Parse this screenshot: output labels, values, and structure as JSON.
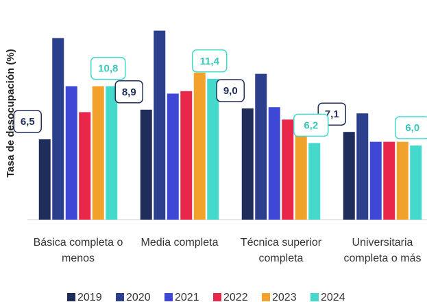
{
  "chart_data": {
    "type": "bar",
    "y_label": "Tasa de desocupación (%)",
    "categories": [
      "Básica completa o menos",
      "Media completa",
      "Técnica superior completa",
      "Universitaria completa o más"
    ],
    "ylim": [
      0,
      16.5
    ],
    "series": [
      {
        "name": "2019",
        "color": "#1f2d5a",
        "values": [
          6.5,
          8.9,
          9.0,
          7.1
        ],
        "value_labels": [
          "6,5",
          "8,9",
          "9,0",
          "7,1"
        ]
      },
      {
        "name": "2020",
        "color": "#2b3f8c",
        "values": [
          14.7,
          15.3,
          11.8,
          8.6
        ]
      },
      {
        "name": "2021",
        "color": "#3f48d6",
        "values": [
          10.8,
          10.2,
          9.1,
          6.3
        ]
      },
      {
        "name": "2022",
        "color": "#e8274b",
        "values": [
          8.7,
          10.4,
          8.1,
          6.3
        ]
      },
      {
        "name": "2023",
        "color": "#f2a12a",
        "values": [
          10.8,
          11.9,
          7.8,
          6.3
        ]
      },
      {
        "name": "2024",
        "color": "#45d9cc",
        "values": [
          10.8,
          11.4,
          6.2,
          6.0
        ],
        "value_labels": [
          "10,8",
          "11,4",
          "6,2",
          "6,0"
        ]
      }
    ]
  }
}
